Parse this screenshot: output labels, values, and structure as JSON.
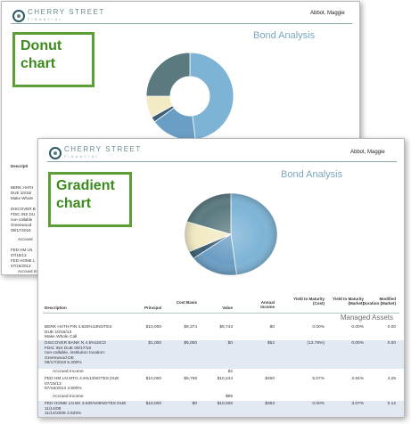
{
  "back": {
    "brand": "CHERRY STREET",
    "brand_sub": "FINANCIAL",
    "client": "Abbot, Maggie",
    "report_title": "Bond Analysis",
    "label_line1": "Donut",
    "label_line2": "chart",
    "desc_header": "Descripti",
    "rows": [
      "BERK HATH",
      "DUE 10/15/",
      "Make Whole",
      "DISCOVER B",
      "FDIC INS DU",
      "non-callable",
      "Greenwood",
      "09/17/2018",
      "Accrued",
      "FED HM LN",
      "07/15/13",
      "FED HOME L",
      "07/15/2013",
      "Accrued In",
      "FED HOME LN",
      "11/14/2008"
    ]
  },
  "front": {
    "brand": "CHERRY STREET",
    "brand_sub": "FINANCIAL",
    "client": "Abbot, Maggie",
    "report_title": "Bond Analysis",
    "label_line1": "Gradient",
    "label_line2": "chart",
    "section_label": "Managed Assets",
    "headers": {
      "description": "Description",
      "principal": "Principal",
      "cost_basis": "Cost Basis",
      "value": "Value",
      "annual_income": "Annual Income",
      "ytm_cost": "Yield to Maturity (Cost)",
      "ytm_market": "Yield to Maturity (Market)",
      "mod_duration": "Modified Duration (Market)"
    },
    "rows": [
      {
        "desc": [
          "BERK HATH FIN 4.625%13NOTES",
          "DUE 10/15/13",
          "Make Whole Call"
        ],
        "principal": "$10,000",
        "cost": "$9,374",
        "value": "$9,743",
        "income": "$0",
        "ytm_cost": "0.00%",
        "ytm_mkt": "0.00%",
        "dur": "0.00",
        "shade": false
      },
      {
        "desc": [
          "DISCOVER BANK N 4.5%18CD",
          "FDIC INS DUE 09/17/18",
          "non-callable, institution location:",
          "Greenwood DE",
          "09/17/2018 5.200%"
        ],
        "principal": "$1,000",
        "cost": "$5,000",
        "value": "$0",
        "income": "$52",
        "ytm_cost": "(13.78%)",
        "ytm_mkt": "0.00%",
        "dur": "0.00",
        "shade": true
      },
      {
        "accrued_label": "Accrued Income",
        "accrued_value": "$2"
      },
      {
        "desc": [
          "FED HM LN MTG 4.5%13NOTES DUE",
          "07/15/13",
          "07/15/2013 4.500%"
        ],
        "principal": "$10,000",
        "cost": "$9,759",
        "value": "$10,244",
        "income": "$450",
        "ytm_cost": "5.07%",
        "ytm_mkt": "3.94%",
        "dur": "4.25",
        "shade": false
      },
      {
        "accrued_label": "Accrued Income",
        "accrued_value": "$95"
      },
      {
        "desc": [
          "FED HOME LN BK 3.625%08NOTES DUE",
          "11/14/08",
          "11/14/2008 3.625%"
        ],
        "principal": "$10,000",
        "cost": "$0",
        "value": "$10,006",
        "income": "$363",
        "ytm_cost": "0.00%",
        "ytm_mkt": "3.07%",
        "dur": "0.12",
        "shade": true
      }
    ]
  },
  "chart_data": [
    {
      "type": "pie",
      "title": "",
      "style": "donut",
      "slices": [
        {
          "value": 48,
          "color": "#7db4d6"
        },
        {
          "value": 17,
          "color": "#6b9ec4"
        },
        {
          "value": 2,
          "color": "#3c5f75"
        },
        {
          "value": 8,
          "color": "#f2ebc4"
        },
        {
          "value": 25,
          "color": "#5a7a80"
        }
      ]
    },
    {
      "type": "pie",
      "title": "",
      "style": "gradient",
      "slices": [
        {
          "value": 48,
          "color": "#7db4d6"
        },
        {
          "value": 17,
          "color": "#6b9ec4"
        },
        {
          "value": 3,
          "color": "#3c5f75"
        },
        {
          "value": 12,
          "color": "#f2ebc4"
        },
        {
          "value": 20,
          "color": "#5a7a80"
        }
      ]
    }
  ]
}
